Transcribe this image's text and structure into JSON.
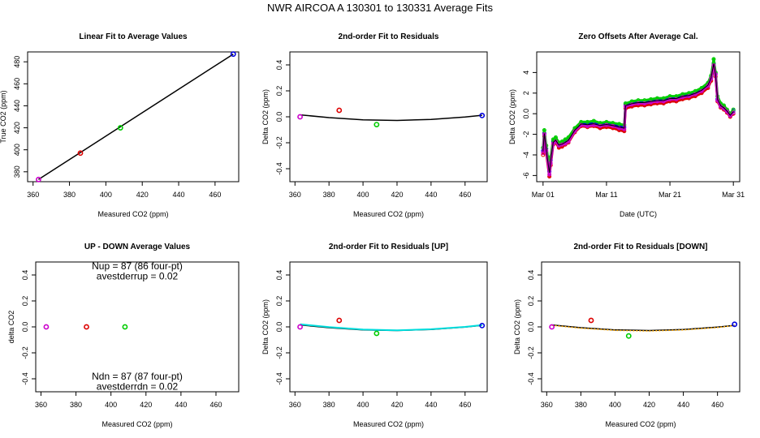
{
  "page_title": "NWR   AIRCOA A   130301 to 130331   Average Fits",
  "colors": {
    "purple": "#cc00cc",
    "red": "#dd0000",
    "green": "#00cc00",
    "blue": "#0000dd",
    "cyan": "#00dddd",
    "orange": "#ffaa00",
    "black": "#000000"
  },
  "chart_data": [
    {
      "id": "p1",
      "type": "scatter+line",
      "title": "Linear Fit to Average Values",
      "xlabel": "Measured CO2 (ppm)",
      "ylabel": "True CO2 (ppm)",
      "xlim": [
        357,
        473
      ],
      "ylim": [
        371,
        489
      ],
      "xticks": [
        360,
        380,
        400,
        420,
        440,
        460
      ],
      "yticks": [
        380,
        400,
        420,
        440,
        460,
        480
      ],
      "points": [
        {
          "x": 363,
          "y": 373,
          "color": "purple"
        },
        {
          "x": 386,
          "y": 397,
          "color": "red"
        },
        {
          "x": 408,
          "y": 420,
          "color": "green"
        },
        {
          "x": 470,
          "y": 487,
          "color": "blue"
        }
      ],
      "lines": [
        {
          "color": "black",
          "x": [
            363,
            470
          ],
          "y": [
            373,
            487
          ]
        }
      ]
    },
    {
      "id": "p2",
      "type": "scatter+line",
      "title": "2nd-order Fit to Residuals",
      "xlabel": "Measured CO2 (ppm)",
      "ylabel": "Delta CO2 (ppm)",
      "xlim": [
        357,
        473
      ],
      "ylim": [
        -0.5,
        0.5
      ],
      "xticks": [
        360,
        380,
        400,
        420,
        440,
        460
      ],
      "yticks": [
        -0.4,
        -0.2,
        0.0,
        0.2,
        0.4
      ],
      "points": [
        {
          "x": 363,
          "y": 0.0,
          "color": "purple"
        },
        {
          "x": 386,
          "y": 0.05,
          "color": "red"
        },
        {
          "x": 408,
          "y": -0.06,
          "color": "green"
        },
        {
          "x": 470,
          "y": 0.01,
          "color": "blue"
        }
      ],
      "lines": [
        {
          "color": "black",
          "x": [
            363,
            380,
            400,
            420,
            440,
            460,
            470
          ],
          "y": [
            0.015,
            -0.006,
            -0.023,
            -0.028,
            -0.02,
            -0.002,
            0.012
          ]
        }
      ]
    },
    {
      "id": "p3",
      "type": "line",
      "title": "Zero Offsets After Average Cal.",
      "xlabel": "Date (UTC)",
      "ylabel": "Delta CO2 (ppm)",
      "xlim": [
        0,
        32
      ],
      "ylim": [
        -6.6,
        6.0
      ],
      "xticks": [
        1,
        11,
        21,
        31
      ],
      "xticklabels": [
        "Mar 01",
        "Mar 11",
        "Mar 21",
        "Mar 31"
      ],
      "yticks": [
        -6,
        -4,
        -2,
        0,
        2,
        4
      ],
      "series": [
        {
          "name": "red",
          "color": "red",
          "x": [
            1,
            1.2,
            1.5,
            2.0,
            2.2,
            2.6,
            3.0,
            3.5,
            4.0,
            4.5,
            5.0,
            6.0,
            7.0,
            8.0,
            9.0,
            10.0,
            11.0,
            12.0,
            13.0,
            13.8,
            14.0,
            15.0,
            16.0,
            17.0,
            18.0,
            19.0,
            20.0,
            21.0,
            22.0,
            23.0,
            24.0,
            25.0,
            26.0,
            27.0,
            27.5,
            27.9,
            28.2,
            28.5,
            29.0,
            29.5,
            30.0,
            30.5,
            31.0
          ],
          "y": [
            -4.0,
            -2.2,
            -3.8,
            -6.1,
            -5.0,
            -3.0,
            -2.8,
            -3.3,
            -3.2,
            -3.0,
            -2.8,
            -1.8,
            -1.2,
            -1.3,
            -1.2,
            -1.4,
            -1.3,
            -1.4,
            -1.6,
            -1.7,
            0.5,
            0.7,
            0.8,
            0.8,
            0.9,
            1.0,
            1.0,
            1.2,
            1.2,
            1.4,
            1.5,
            1.7,
            2.0,
            2.5,
            3.2,
            4.5,
            3.6,
            1.2,
            0.6,
            0.4,
            0.1,
            -0.3,
            0.0
          ]
        },
        {
          "name": "blue",
          "color": "blue",
          "x": [
            1,
            1.2,
            1.5,
            2.0,
            2.2,
            2.6,
            3.0,
            3.5,
            4.0,
            4.5,
            5.0,
            6.0,
            7.0,
            8.0,
            9.0,
            10.0,
            11.0,
            12.0,
            13.0,
            13.8,
            14.0,
            15.0,
            16.0,
            17.0,
            18.0,
            19.0,
            20.0,
            21.0,
            22.0,
            23.0,
            24.0,
            25.0,
            26.0,
            27.0,
            27.5,
            27.9,
            28.2,
            28.5,
            29.0,
            29.5,
            30.0,
            30.5,
            31.0
          ],
          "y": [
            -3.6,
            -1.9,
            -3.4,
            -5.6,
            -4.5,
            -2.7,
            -2.5,
            -3.0,
            -2.9,
            -2.7,
            -2.5,
            -1.5,
            -0.9,
            -1.0,
            -0.9,
            -1.1,
            -1.0,
            -1.1,
            -1.2,
            -1.3,
            0.9,
            1.1,
            1.2,
            1.2,
            1.3,
            1.4,
            1.4,
            1.6,
            1.6,
            1.8,
            1.9,
            2.1,
            2.4,
            2.9,
            3.6,
            4.9,
            3.9,
            1.4,
            0.8,
            0.6,
            0.3,
            -0.1,
            0.3
          ]
        },
        {
          "name": "green",
          "color": "green",
          "x": [
            1,
            1.2,
            1.5,
            2.0,
            2.2,
            2.6,
            3.0,
            3.5,
            4.0,
            4.5,
            5.0,
            6.0,
            7.0,
            8.0,
            9.0,
            10.0,
            11.0,
            12.0,
            13.0,
            13.8,
            14.0,
            15.0,
            16.0,
            17.0,
            18.0,
            19.0,
            20.0,
            21.0,
            22.0,
            23.0,
            24.0,
            25.0,
            26.0,
            27.0,
            27.5,
            27.9,
            28.2,
            28.5,
            29.0,
            29.5,
            30.0,
            30.5,
            31.0
          ],
          "y": [
            -3.3,
            -1.6,
            -3.1,
            -5.3,
            -4.2,
            -2.5,
            -2.3,
            -2.8,
            -2.7,
            -2.5,
            -2.3,
            -1.4,
            -0.8,
            -0.8,
            -0.7,
            -0.9,
            -0.8,
            -0.9,
            -1.0,
            -1.1,
            1.0,
            1.2,
            1.3,
            1.3,
            1.4,
            1.5,
            1.5,
            1.7,
            1.7,
            1.9,
            2.0,
            2.2,
            2.5,
            3.0,
            3.7,
            5.3,
            4.0,
            1.7,
            1.0,
            0.8,
            0.4,
            0.0,
            0.4
          ]
        },
        {
          "name": "purple",
          "color": "purple",
          "x": [
            1,
            1.2,
            1.5,
            2.0,
            2.2,
            2.6,
            3.0,
            3.5,
            4.0,
            4.5,
            5.0,
            6.0,
            7.0,
            8.0,
            9.0,
            10.0,
            11.0,
            12.0,
            13.0,
            13.8,
            14.0,
            15.0,
            16.0,
            17.0,
            18.0,
            19.0,
            20.0,
            21.0,
            22.0,
            23.0,
            24.0,
            25.0,
            26.0,
            27.0,
            27.5,
            27.9,
            28.2,
            28.5,
            29.0,
            29.5,
            30.0,
            30.5,
            31.0
          ],
          "y": [
            -3.8,
            -2.0,
            -3.6,
            -5.9,
            -4.8,
            -2.9,
            -2.7,
            -3.1,
            -3.0,
            -2.9,
            -2.7,
            -1.7,
            -1.1,
            -1.2,
            -1.1,
            -1.2,
            -1.1,
            -1.2,
            -1.4,
            -1.5,
            0.7,
            0.9,
            1.0,
            1.0,
            1.1,
            1.2,
            1.2,
            1.4,
            1.4,
            1.6,
            1.7,
            1.9,
            2.2,
            2.7,
            3.4,
            4.7,
            3.8,
            1.3,
            0.7,
            0.5,
            0.2,
            -0.2,
            0.1
          ]
        }
      ]
    },
    {
      "id": "p4",
      "type": "scatter",
      "title": "UP - DOWN Average Values",
      "xlabel": "Measured CO2 (ppm)",
      "ylabel": "delta CO2",
      "xlim": [
        357,
        473
      ],
      "ylim": [
        -0.5,
        0.5
      ],
      "xticks": [
        360,
        380,
        400,
        420,
        440,
        460
      ],
      "yticks": [
        -0.4,
        -0.2,
        0.0,
        0.2,
        0.4
      ],
      "points": [
        {
          "x": 363,
          "y": 0.0,
          "color": "purple"
        },
        {
          "x": 386,
          "y": 0.0,
          "color": "red"
        },
        {
          "x": 408,
          "y": 0.0,
          "color": "green"
        }
      ],
      "annotations": [
        {
          "text": "Nup = 87 (86 four-pt)",
          "x": 415,
          "y": 0.47
        },
        {
          "text": "avestderrup =  0.02",
          "x": 415,
          "y": 0.39
        },
        {
          "text": "Ndn = 87 (87 four-pt)",
          "x": 415,
          "y": -0.38
        },
        {
          "text": "avestderrdn =  0.02",
          "x": 415,
          "y": -0.46
        }
      ]
    },
    {
      "id": "p5",
      "type": "scatter+line",
      "title": "2nd-order Fit to Residuals [UP]",
      "xlabel": "Measured CO2 (ppm)",
      "ylabel": "Delta CO2 (ppm)",
      "xlim": [
        357,
        473
      ],
      "ylim": [
        -0.5,
        0.5
      ],
      "xticks": [
        360,
        380,
        400,
        420,
        440,
        460
      ],
      "yticks": [
        -0.4,
        -0.2,
        0.0,
        0.2,
        0.4
      ],
      "points": [
        {
          "x": 363,
          "y": 0.0,
          "color": "purple"
        },
        {
          "x": 386,
          "y": 0.05,
          "color": "red"
        },
        {
          "x": 408,
          "y": -0.05,
          "color": "green"
        },
        {
          "x": 470,
          "y": 0.01,
          "color": "blue"
        }
      ],
      "lines": [
        {
          "color": "black",
          "x": [
            363,
            380,
            400,
            420,
            440,
            460,
            470
          ],
          "y": [
            0.015,
            -0.006,
            -0.023,
            -0.028,
            -0.02,
            -0.002,
            0.012
          ]
        },
        {
          "color": "cyan",
          "x": [
            363,
            380,
            400,
            420,
            440,
            460,
            470
          ],
          "y": [
            0.02,
            -0.002,
            -0.02,
            -0.026,
            -0.018,
            0.0,
            0.014
          ],
          "width": 2
        }
      ]
    },
    {
      "id": "p6",
      "type": "scatter+line",
      "title": "2nd-order Fit to Residuals [DOWN]",
      "xlabel": "Measured CO2 (ppm)",
      "ylabel": "Delta CO2 (ppm)",
      "xlim": [
        357,
        473
      ],
      "ylim": [
        -0.5,
        0.5
      ],
      "xticks": [
        360,
        380,
        400,
        420,
        440,
        460
      ],
      "yticks": [
        -0.4,
        -0.2,
        0.0,
        0.2,
        0.4
      ],
      "points": [
        {
          "x": 363,
          "y": 0.0,
          "color": "purple"
        },
        {
          "x": 386,
          "y": 0.05,
          "color": "red"
        },
        {
          "x": 408,
          "y": -0.07,
          "color": "green"
        },
        {
          "x": 470,
          "y": 0.02,
          "color": "blue"
        }
      ],
      "lines": [
        {
          "color": "black",
          "x": [
            363,
            380,
            400,
            420,
            440,
            460,
            470
          ],
          "y": [
            0.015,
            -0.006,
            -0.023,
            -0.028,
            -0.02,
            -0.002,
            0.012
          ]
        },
        {
          "color": "orange",
          "x": [
            363,
            380,
            400,
            420,
            440,
            460,
            470
          ],
          "y": [
            0.012,
            -0.01,
            -0.027,
            -0.032,
            -0.024,
            -0.005,
            0.01
          ],
          "dashed": true
        }
      ]
    }
  ]
}
